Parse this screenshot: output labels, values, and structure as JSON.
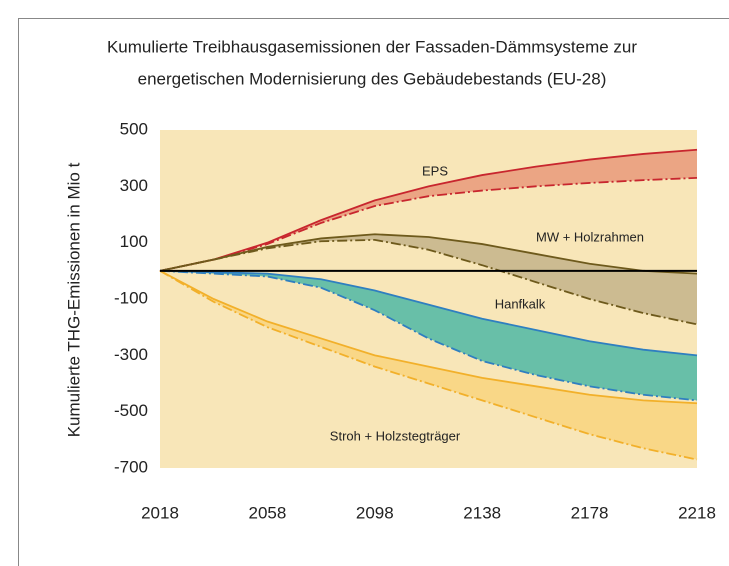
{
  "chart_data": {
    "type": "band",
    "title": [
      "Kumulierte Treibhausgasemissionen der Fassaden-Dämmsysteme zur",
      "energetischen Modernisierung des Gebäudebestands (EU-28)"
    ],
    "y_label": "Kumulierte THG-Emissionen in Mio t",
    "x": [
      2018,
      2038,
      2058,
      2078,
      2098,
      2118,
      2138,
      2158,
      2178,
      2198,
      2218
    ],
    "xlim": [
      2018,
      2218
    ],
    "xticks": [
      2018,
      2058,
      2098,
      2138,
      2178,
      2218
    ],
    "ylim": [
      -700,
      500
    ],
    "yticks": [
      500,
      300,
      100,
      -100,
      -300,
      -500,
      -700
    ],
    "background": "#f8e6b8",
    "series": [
      {
        "name": "EPS",
        "color": "#c8262e",
        "fill": "#e9997a",
        "high": [
          0,
          40,
          100,
          180,
          250,
          300,
          340,
          370,
          395,
          415,
          430
        ],
        "low": [
          0,
          40,
          95,
          170,
          230,
          265,
          285,
          300,
          312,
          322,
          330
        ]
      },
      {
        "name": "MW + Holzrahmen",
        "color": "#6e5a1c",
        "fill": "#c4b389",
        "high": [
          0,
          40,
          85,
          115,
          130,
          120,
          95,
          60,
          25,
          0,
          -10
        ],
        "low": [
          0,
          40,
          80,
          105,
          110,
          75,
          20,
          -40,
          -100,
          -150,
          -190
        ]
      },
      {
        "name": "Hanfkalk",
        "color": "#2f7fc0",
        "fill": "#4fb7a5",
        "high": [
          0,
          -5,
          -10,
          -30,
          -70,
          -120,
          -170,
          -210,
          -250,
          -280,
          -300
        ],
        "low": [
          0,
          -10,
          -20,
          -60,
          -140,
          -240,
          -320,
          -370,
          -410,
          -440,
          -460
        ]
      },
      {
        "name": "Stroh + Holzstegträger",
        "color": "#f2b02a",
        "fill": "#f9d47e",
        "high": [
          0,
          -100,
          -180,
          -240,
          -300,
          -340,
          -380,
          -410,
          -440,
          -460,
          -470
        ],
        "low": [
          0,
          -110,
          -200,
          -270,
          -340,
          -400,
          -460,
          -520,
          -580,
          -630,
          -670
        ]
      }
    ]
  }
}
